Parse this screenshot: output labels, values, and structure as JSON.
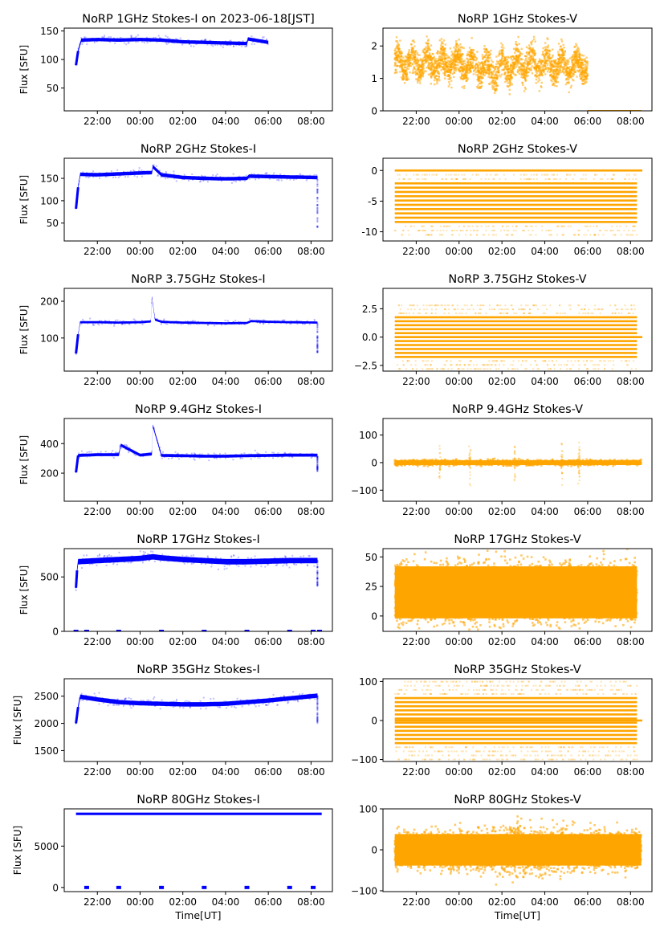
{
  "figure": {
    "xlabel": "Time[UT]",
    "ylabel": "Flux [SFU]",
    "colors": {
      "stokes_i": "#0000ff",
      "stokes_v": "#ffa500"
    }
  },
  "chart_data": [
    {
      "type": "scatter",
      "panel": "1GHz-I",
      "title": "NoRP 1GHz Stokes-I on 2023-06-18[JST]",
      "xlabel": "",
      "ylabel": "Flux [SFU]",
      "x_ticks": [
        "22:00",
        "00:00",
        "02:00",
        "04:00",
        "06:00",
        "08:00"
      ],
      "xlim_hours": [
        20.45,
        33.0
      ],
      "data_range_hours": [
        21.0,
        30.0
      ],
      "ylim": [
        10,
        155
      ],
      "y_ticks": [
        50,
        100,
        150
      ],
      "series": [
        {
          "name": "Stokes-I",
          "color": "#0000ff",
          "x": [
            21.0,
            21.1,
            21.25,
            22.0,
            23.0,
            24.0,
            25.0,
            26.0,
            27.0,
            28.0,
            29.0,
            29.05,
            30.0
          ],
          "y": [
            90,
            115,
            134,
            135,
            134,
            135,
            134,
            131,
            130,
            129,
            128,
            136,
            130
          ],
          "spread": 3
        }
      ]
    },
    {
      "type": "scatter",
      "panel": "1GHz-V",
      "title": "NoRP 1GHz Stokes-V",
      "x_ticks": [
        "22:00",
        "00:00",
        "02:00",
        "04:00",
        "06:00",
        "08:00"
      ],
      "xlim_hours": [
        20.45,
        33.0
      ],
      "data_range_hours": [
        21.0,
        30.0
      ],
      "ylim": [
        0,
        2.55
      ],
      "y_ticks": [
        0,
        1,
        2
      ],
      "series": [
        {
          "name": "Stokes-V",
          "color": "#ffa500",
          "x": [
            21.0,
            22.0,
            23.0,
            24.0,
            25.0,
            25.5,
            26.0,
            27.0,
            28.0,
            29.0,
            30.0
          ],
          "y": [
            1.5,
            1.45,
            1.45,
            1.5,
            1.35,
            1.2,
            1.35,
            1.45,
            1.45,
            1.4,
            1.4
          ],
          "spread": 0.55
        },
        {
          "name": "zero-flag",
          "color": "#ffa500",
          "x_range": [
            30.0,
            32.5
          ],
          "y": 0
        }
      ]
    },
    {
      "type": "scatter",
      "panel": "2GHz-I",
      "title": "NoRP 2GHz Stokes-I",
      "ylabel": "Flux [SFU]",
      "x_ticks": [
        "22:00",
        "00:00",
        "02:00",
        "04:00",
        "06:00",
        "08:00"
      ],
      "xlim_hours": [
        20.45,
        33.0
      ],
      "data_range_hours": [
        21.0,
        32.3
      ],
      "ylim": [
        10,
        195
      ],
      "y_ticks": [
        50,
        100,
        150
      ],
      "series": [
        {
          "name": "Stokes-I",
          "color": "#0000ff",
          "x": [
            21.0,
            21.1,
            21.2,
            22.0,
            23.0,
            24.0,
            24.55,
            24.6,
            25.0,
            26.0,
            27.0,
            28.0,
            29.0,
            29.1,
            30.0,
            31.0,
            32.3
          ],
          "y": [
            82,
            130,
            159,
            158,
            160,
            162,
            163,
            176,
            158,
            152,
            150,
            149,
            150,
            155,
            154,
            153,
            152
          ],
          "spread": 4,
          "tail_drop_to": 40
        }
      ]
    },
    {
      "type": "scatter",
      "panel": "2GHz-V",
      "title": "NoRP 2GHz Stokes-V",
      "x_ticks": [
        "22:00",
        "00:00",
        "02:00",
        "04:00",
        "06:00",
        "08:00"
      ],
      "xlim_hours": [
        20.45,
        33.0
      ],
      "data_range_hours": [
        21.0,
        32.3
      ],
      "ylim": [
        -11.5,
        2
      ],
      "y_ticks": [
        -10,
        -5,
        0
      ],
      "quantized_levels": [
        -10.5,
        -9.8,
        -9.1,
        -8.4,
        -7.7,
        -7.0,
        -6.3,
        -5.6,
        -4.9,
        -4.2,
        -3.5,
        -2.8,
        -2.1,
        -1.4,
        -0.7,
        0.0
      ],
      "series": [
        {
          "name": "Stokes-V",
          "color": "#ffa500",
          "dense_range": [
            -8.5,
            -1.5
          ]
        }
      ]
    },
    {
      "type": "scatter",
      "panel": "3.75GHz-I",
      "title": "NoRP 3.75GHz Stokes-I",
      "ylabel": "Flux [SFU]",
      "x_ticks": [
        "22:00",
        "00:00",
        "02:00",
        "04:00",
        "06:00",
        "08:00"
      ],
      "xlim_hours": [
        20.45,
        33.0
      ],
      "data_range_hours": [
        21.0,
        32.3
      ],
      "ylim": [
        10,
        235
      ],
      "y_ticks": [
        100,
        200
      ],
      "series": [
        {
          "name": "Stokes-I",
          "color": "#0000ff",
          "x": [
            21.0,
            21.1,
            21.2,
            22.0,
            23.0,
            24.0,
            24.5,
            24.55,
            24.7,
            25.0,
            26.0,
            27.0,
            28.0,
            29.0,
            29.2,
            30.0,
            31.0,
            32.3
          ],
          "y": [
            58,
            110,
            143,
            143,
            142,
            143,
            145,
            212,
            150,
            144,
            142,
            141,
            140,
            141,
            146,
            144,
            143,
            142
          ],
          "spread": 3,
          "tail_drop_to": 58
        }
      ]
    },
    {
      "type": "scatter",
      "panel": "3.75GHz-V",
      "title": "NoRP 3.75GHz Stokes-V",
      "x_ticks": [
        "22:00",
        "00:00",
        "02:00",
        "04:00",
        "06:00",
        "08:00"
      ],
      "xlim_hours": [
        20.45,
        33.0
      ],
      "data_range_hours": [
        21.0,
        32.3
      ],
      "ylim": [
        -3.0,
        4.3
      ],
      "y_ticks": [
        -2.5,
        0.0,
        2.5
      ],
      "y_tick_labels": [
        "−2.5",
        "0.0",
        "2.5"
      ],
      "series": [
        {
          "name": "Stokes-V",
          "color": "#ffa500",
          "dense_range": [
            -1.8,
            1.8
          ]
        }
      ]
    },
    {
      "type": "scatter",
      "panel": "9.4GHz-I",
      "title": "NoRP 9.4GHz Stokes-I",
      "ylabel": "Flux [SFU]",
      "x_ticks": [
        "22:00",
        "00:00",
        "02:00",
        "04:00",
        "06:00",
        "08:00"
      ],
      "xlim_hours": [
        20.45,
        33.0
      ],
      "data_range_hours": [
        21.0,
        32.3
      ],
      "ylim": [
        10,
        570
      ],
      "y_ticks": [
        200,
        400
      ],
      "series": [
        {
          "name": "Stokes-I",
          "color": "#0000ff",
          "x": [
            21.0,
            21.1,
            22.0,
            23.0,
            23.1,
            24.0,
            24.55,
            24.6,
            25.0,
            26.0,
            27.0,
            28.0,
            29.0,
            30.0,
            31.0,
            32.3
          ],
          "y": [
            205,
            320,
            325,
            325,
            390,
            322,
            330,
            520,
            320,
            318,
            315,
            315,
            318,
            320,
            322,
            322
          ],
          "spread": 10,
          "tail_drop_to": 210
        }
      ]
    },
    {
      "type": "scatter",
      "panel": "9.4GHz-V",
      "title": "NoRP 9.4GHz Stokes-V",
      "x_ticks": [
        "22:00",
        "00:00",
        "02:00",
        "04:00",
        "06:00",
        "08:00"
      ],
      "xlim_hours": [
        20.45,
        33.0
      ],
      "data_range_hours": [
        21.0,
        32.5
      ],
      "ylim": [
        -140,
        160
      ],
      "y_ticks": [
        -100,
        0,
        100
      ],
      "y_tick_labels": [
        "−100",
        "0",
        "100"
      ],
      "series": [
        {
          "name": "Stokes-V",
          "color": "#ffa500",
          "center": 0,
          "spread": 8,
          "bursts_hours": [
            23.1,
            24.5,
            26.6,
            28.8,
            29.6
          ]
        }
      ]
    },
    {
      "type": "scatter",
      "panel": "17GHz-I",
      "title": "NoRP 17GHz Stokes-I",
      "ylabel": "Flux [SFU]",
      "x_ticks": [
        "22:00",
        "00:00",
        "02:00",
        "04:00",
        "06:00",
        "08:00"
      ],
      "xlim_hours": [
        20.45,
        33.0
      ],
      "data_range_hours": [
        21.0,
        32.3
      ],
      "ylim": [
        0,
        760
      ],
      "y_ticks": [
        0,
        500
      ],
      "series": [
        {
          "name": "Stokes-I",
          "color": "#0000ff",
          "x": [
            21.0,
            21.05,
            21.1,
            22.0,
            23.0,
            24.0,
            24.6,
            25.0,
            26.0,
            27.0,
            28.0,
            29.0,
            30.0,
            31.0,
            32.3
          ],
          "y": [
            400,
            560,
            640,
            650,
            660,
            670,
            685,
            675,
            660,
            650,
            640,
            640,
            645,
            650,
            650
          ],
          "spread": 25,
          "tail_drop_to": 410,
          "zero_marks_hours": [
            21.0,
            21.5,
            23.0,
            25.0,
            27.0,
            29.0,
            31.0,
            32.1,
            32.4
          ]
        }
      ]
    },
    {
      "type": "scatter",
      "panel": "17GHz-V",
      "title": "NoRP 17GHz Stokes-V",
      "x_ticks": [
        "22:00",
        "00:00",
        "02:00",
        "04:00",
        "06:00",
        "08:00"
      ],
      "xlim_hours": [
        20.45,
        33.0
      ],
      "data_range_hours": [
        21.0,
        32.3
      ],
      "ylim": [
        -13,
        57
      ],
      "y_ticks": [
        0,
        25,
        50
      ],
      "series": [
        {
          "name": "Stokes-V",
          "color": "#ffa500",
          "center": 20,
          "spread": 20
        }
      ]
    },
    {
      "type": "scatter",
      "panel": "35GHz-I",
      "title": "NoRP 35GHz Stokes-I",
      "ylabel": "Flux [SFU]",
      "x_ticks": [
        "22:00",
        "00:00",
        "02:00",
        "04:00",
        "06:00",
        "08:00"
      ],
      "xlim_hours": [
        20.45,
        33.0
      ],
      "data_range_hours": [
        21.0,
        32.3
      ],
      "ylim": [
        1300,
        2820
      ],
      "y_ticks": [
        1500,
        2000,
        2500
      ],
      "series": [
        {
          "name": "Stokes-I",
          "color": "#0000ff",
          "x": [
            21.0,
            21.1,
            21.2,
            22.0,
            23.0,
            24.0,
            25.0,
            26.0,
            27.0,
            28.0,
            29.0,
            30.0,
            31.0,
            32.3
          ],
          "y": [
            2000,
            2300,
            2490,
            2440,
            2390,
            2370,
            2360,
            2350,
            2350,
            2360,
            2390,
            2420,
            2460,
            2510
          ],
          "spread": 40,
          "tail_drop_to": 2000
        }
      ]
    },
    {
      "type": "scatter",
      "panel": "35GHz-V",
      "title": "NoRP 35GHz Stokes-V",
      "x_ticks": [
        "22:00",
        "00:00",
        "02:00",
        "04:00",
        "06:00",
        "08:00"
      ],
      "xlim_hours": [
        20.45,
        33.0
      ],
      "data_range_hours": [
        21.0,
        32.3
      ],
      "ylim": [
        -105,
        107
      ],
      "y_ticks": [
        -100,
        0,
        100
      ],
      "y_tick_labels": [
        "−100",
        "0",
        "100"
      ],
      "series": [
        {
          "name": "Stokes-V",
          "color": "#ffa500",
          "level_step": 10.5,
          "dense_range": [
            -60,
            62
          ]
        }
      ]
    },
    {
      "type": "scatter",
      "panel": "80GHz-I",
      "title": "NoRP 80GHz Stokes-I",
      "xlabel": "Time[UT]",
      "ylabel": "Flux [SFU]",
      "x_ticks": [
        "22:00",
        "00:00",
        "02:00",
        "04:00",
        "06:00",
        "08:00"
      ],
      "xlim_hours": [
        20.45,
        33.0
      ],
      "data_range_hours": [
        21.0,
        32.5
      ],
      "ylim": [
        -500,
        9500
      ],
      "y_ticks": [
        0,
        5000
      ],
      "series": [
        {
          "name": "Stokes-I",
          "color": "#0000ff",
          "center": 8900,
          "spread": 150,
          "zero_marks_hours": [
            21.5,
            23.0,
            25.0,
            27.0,
            29.0,
            31.0,
            32.1
          ]
        }
      ]
    },
    {
      "type": "scatter",
      "panel": "80GHz-V",
      "title": "NoRP 80GHz Stokes-V",
      "xlabel": "Time[UT]",
      "x_ticks": [
        "22:00",
        "00:00",
        "02:00",
        "04:00",
        "06:00",
        "08:00"
      ],
      "xlim_hours": [
        20.45,
        33.0
      ],
      "data_range_hours": [
        21.0,
        32.5
      ],
      "ylim": [
        -102,
        100
      ],
      "y_ticks": [
        -100,
        0,
        100
      ],
      "y_tick_labels": [
        "−100",
        "0",
        "100"
      ],
      "series": [
        {
          "name": "Stokes-V",
          "color": "#ffa500",
          "center": 0,
          "spread": 35
        }
      ]
    }
  ]
}
